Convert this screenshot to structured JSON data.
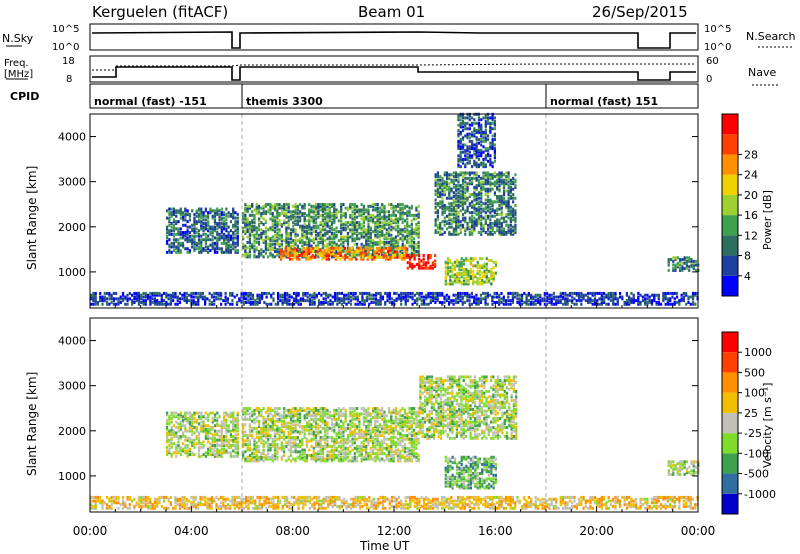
{
  "header": {
    "station": "Kerguelen (fitACF)",
    "beam": "Beam 01",
    "date": "26/Sep/2015"
  },
  "panels": {
    "nsky": {
      "label": "N.Sky",
      "right_label": "N.Search",
      "ticks_left": [
        "10^5",
        "10^0"
      ],
      "ticks_right": [
        "10^5",
        "10^0"
      ]
    },
    "freq": {
      "label_line1": "Freq.",
      "label_line2": "[MHz]",
      "right_label": "Nave",
      "ticks_left": [
        "18",
        "8"
      ],
      "ticks_right": [
        "60",
        "0"
      ]
    },
    "cpid": {
      "label": "CPID",
      "segments": [
        {
          "start_h": 0.0,
          "end_h": 6.0,
          "name": "normal (fast) -151"
        },
        {
          "start_h": 6.0,
          "end_h": 18.0,
          "name": "themis 3300"
        },
        {
          "start_h": 18.0,
          "end_h": 24.0,
          "name": "normal (fast) 151"
        }
      ]
    }
  },
  "chart_data": [
    {
      "type": "heatmap",
      "name": "power",
      "ylabel": "Slant Range [km]",
      "ylim": [
        200,
        4500
      ],
      "yticks": [
        "1000",
        "2000",
        "3000",
        "4000"
      ],
      "xlim": [
        0,
        24
      ],
      "colorbar_label": "Power [dB]",
      "colorbar_ticks": [
        "4",
        "8",
        "12",
        "16",
        "20",
        "24",
        "28"
      ],
      "colors": [
        "#0000ff",
        "#1f3f9f",
        "#2e6e5e",
        "#3fa050",
        "#9ed030",
        "#f0d000",
        "#ff9000",
        "#ff4000",
        "#ff0000"
      ],
      "regions": [
        {
          "t0": 6.0,
          "t1": 13.0,
          "r0": 1300,
          "r1": 2500,
          "level": 0.35
        },
        {
          "t0": 7.5,
          "t1": 12.5,
          "r0": 1250,
          "r1": 1500,
          "level": 0.75
        },
        {
          "t0": 12.5,
          "t1": 13.6,
          "r0": 1050,
          "r1": 1350,
          "level": 0.95
        },
        {
          "t0": 13.6,
          "t1": 16.8,
          "r0": 1800,
          "r1": 3200,
          "level": 0.3
        },
        {
          "t0": 14.0,
          "t1": 16.0,
          "r0": 700,
          "r1": 1300,
          "level": 0.5
        },
        {
          "t0": 3.0,
          "t1": 5.8,
          "r0": 1400,
          "r1": 2400,
          "level": 0.25
        },
        {
          "t0": 14.5,
          "t1": 16.0,
          "r0": 3300,
          "r1": 4500,
          "level": 0.2
        },
        {
          "t0": 22.8,
          "t1": 24.0,
          "r0": 1000,
          "r1": 1300,
          "level": 0.3
        },
        {
          "t0": 0.0,
          "t1": 24.0,
          "r0": 250,
          "r1": 500,
          "level": 0.15
        }
      ]
    },
    {
      "type": "heatmap",
      "name": "velocity",
      "ylabel": "Slant Range [km]",
      "ylim": [
        200,
        4500
      ],
      "yticks": [
        "1000",
        "2000",
        "3000",
        "4000"
      ],
      "xlim": [
        0,
        24
      ],
      "xticks": [
        "00:00",
        "04:00",
        "08:00",
        "12:00",
        "16:00",
        "20:00",
        "00:00"
      ],
      "xlabel": "Time UT",
      "colorbar_label": "Velocity [m s⁻¹]",
      "colorbar_ticks": [
        "1000",
        "500",
        "100",
        "25",
        "-25",
        "-100",
        "-500",
        "-1000"
      ],
      "colors": [
        "#0000cc",
        "#2e6ea0",
        "#3fa050",
        "#7fdc2a",
        "#c0c0b8",
        "#f0c000",
        "#ff9000",
        "#ff4000",
        "#ff0000"
      ],
      "regions": [
        {
          "t0": 6.0,
          "t1": 13.0,
          "r0": 1300,
          "r1": 2500,
          "level": 0.45
        },
        {
          "t0": 13.0,
          "t1": 16.8,
          "r0": 1800,
          "r1": 3200,
          "level": 0.45
        },
        {
          "t0": 14.0,
          "t1": 16.0,
          "r0": 700,
          "r1": 1400,
          "level": 0.35
        },
        {
          "t0": 3.0,
          "t1": 5.8,
          "r0": 1400,
          "r1": 2400,
          "level": 0.45
        },
        {
          "t0": 22.8,
          "t1": 24.0,
          "r0": 1000,
          "r1": 1300,
          "level": 0.45
        },
        {
          "t0": 0.0,
          "t1": 24.0,
          "r0": 250,
          "r1": 500,
          "level": 0.6
        }
      ]
    }
  ]
}
